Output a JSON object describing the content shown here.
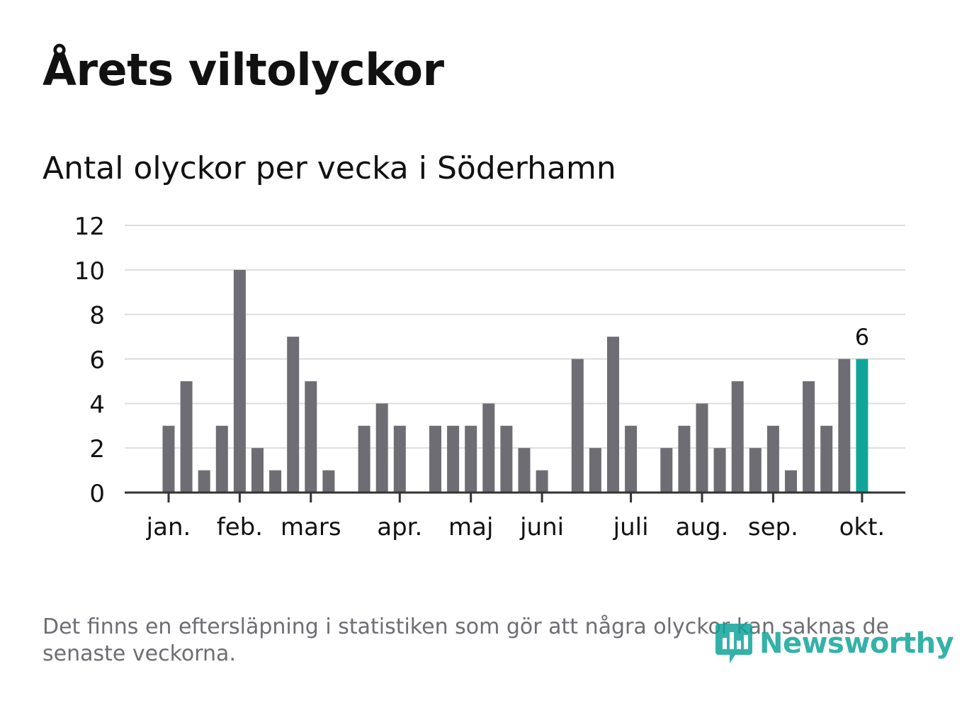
{
  "title": "Årets viltolyckor",
  "subtitle": "Antal olyckor per vecka i Söderhamn",
  "footnote": "Det finns en eftersläpning i statistiken som gör att några olyckor kan saknas de senaste veckorna.",
  "brand": "Newsworthy",
  "colors": {
    "bar": "#6e6d73",
    "highlight": "#11a59a",
    "grid": "#dddddd",
    "axis": "#333333",
    "text": "#111111",
    "muted": "#6e6d73"
  },
  "chart_data": {
    "type": "bar",
    "title": "Antal olyckor per vecka i Söderhamn",
    "xlabel": "",
    "ylabel": "",
    "ylim": [
      0,
      12
    ],
    "yticks": [
      "0",
      "2",
      "4",
      "6",
      "8",
      "10",
      "12"
    ],
    "grid": true,
    "weeks": [
      1,
      2,
      3,
      4,
      5,
      6,
      7,
      8,
      9,
      10,
      11,
      12,
      13,
      14,
      15,
      16,
      17,
      18,
      19,
      20,
      21,
      22,
      23,
      24,
      25,
      26,
      27,
      28,
      29,
      30,
      31,
      32,
      33,
      34,
      35,
      36,
      37,
      38,
      39,
      40
    ],
    "values": [
      3,
      5,
      1,
      3,
      10,
      2,
      1,
      7,
      5,
      1,
      0,
      3,
      4,
      3,
      0,
      3,
      3,
      3,
      4,
      3,
      2,
      1,
      0,
      6,
      2,
      7,
      3,
      0,
      2,
      3,
      4,
      2,
      5,
      2,
      3,
      1,
      5,
      3,
      6,
      6
    ],
    "highlight_index": 39,
    "highlight_label": "6",
    "month_labels": [
      {
        "label": "jan.",
        "week": 1
      },
      {
        "label": "feb.",
        "week": 5
      },
      {
        "label": "mars",
        "week": 9
      },
      {
        "label": "apr.",
        "week": 14
      },
      {
        "label": "maj",
        "week": 18
      },
      {
        "label": "juni",
        "week": 22
      },
      {
        "label": "juli",
        "week": 27
      },
      {
        "label": "aug.",
        "week": 31
      },
      {
        "label": "sep.",
        "week": 35
      },
      {
        "label": "okt.",
        "week": 40
      }
    ]
  }
}
